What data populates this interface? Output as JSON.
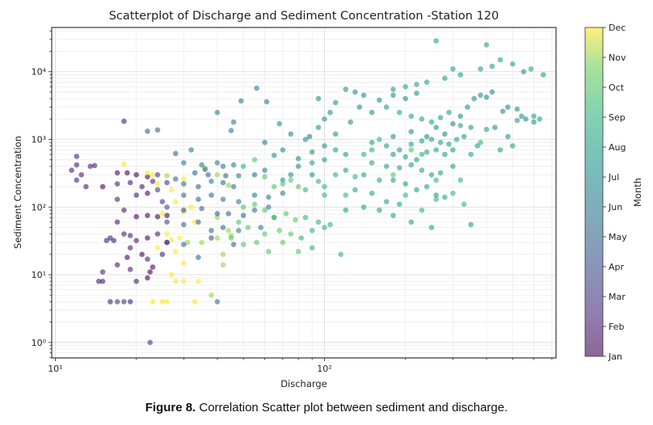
{
  "chart_data": {
    "type": "scatter",
    "title": "Scatterplot of Discharge and Sediment Concentration -Station 120",
    "xlabel": "Discharge",
    "ylabel": "Sediment Concentration",
    "xscale": "log",
    "yscale": "log",
    "xlim": [
      9.7,
      725
    ],
    "ylim": [
      0.59,
      45000
    ],
    "grid": "minor and major, light gray",
    "x_ticks": [
      {
        "value": 10,
        "label": "10¹"
      },
      {
        "value": 100,
        "label": "10²"
      }
    ],
    "y_ticks": [
      {
        "value": 1,
        "label": "10⁰"
      },
      {
        "value": 10,
        "label": "10¹"
      },
      {
        "value": 100,
        "label": "10²"
      },
      {
        "value": 1000,
        "label": "10³"
      },
      {
        "value": 10000,
        "label": "10⁴"
      }
    ],
    "colorbar": {
      "label": "Month",
      "colormap": "viridis",
      "alpha": 0.6,
      "ticks": [
        "Jan",
        "Feb",
        "Mar",
        "Apr",
        "May",
        "Jun",
        "Jul",
        "Aug",
        "Sep",
        "Oct",
        "Nov",
        "Dec"
      ]
    },
    "point_fields": [
      "discharge",
      "sediment_concentration",
      "month"
    ],
    "points": [
      [
        12,
        560,
        2
      ],
      [
        12,
        420,
        2
      ],
      [
        11.5,
        350,
        2
      ],
      [
        12.5,
        300,
        2
      ],
      [
        13.5,
        400,
        2
      ],
      [
        14,
        410,
        2
      ],
      [
        12,
        250,
        2
      ],
      [
        15,
        200,
        1
      ],
      [
        18,
        1850,
        2
      ],
      [
        17,
        320,
        1
      ],
      [
        18.5,
        320,
        1
      ],
      [
        20,
        300,
        1
      ],
      [
        22,
        280,
        1
      ],
      [
        17,
        220,
        2
      ],
      [
        19,
        230,
        2
      ],
      [
        21,
        200,
        2
      ],
      [
        23,
        240,
        2
      ],
      [
        24,
        180,
        3
      ],
      [
        26,
        230,
        3
      ],
      [
        17,
        130,
        2
      ],
      [
        20,
        150,
        2
      ],
      [
        22,
        160,
        1
      ],
      [
        25,
        120,
        3
      ],
      [
        18,
        90,
        2
      ],
      [
        22,
        75,
        1
      ],
      [
        24,
        72,
        1
      ],
      [
        26,
        75,
        1
      ],
      [
        20,
        72,
        1
      ],
      [
        17,
        60,
        2
      ],
      [
        18,
        40,
        2
      ],
      [
        19,
        38,
        2
      ],
      [
        15.5,
        32,
        2
      ],
      [
        16.5,
        32,
        2
      ],
      [
        20,
        32,
        2
      ],
      [
        22,
        35,
        1
      ],
      [
        24,
        40,
        2
      ],
      [
        26,
        30,
        1
      ],
      [
        19,
        25,
        2
      ],
      [
        18.5,
        18,
        1
      ],
      [
        21,
        20,
        1
      ],
      [
        22,
        17,
        2
      ],
      [
        17,
        14,
        2
      ],
      [
        15,
        11,
        2
      ],
      [
        14.5,
        8,
        2
      ],
      [
        15,
        8,
        2
      ],
      [
        20,
        8,
        2
      ],
      [
        22,
        9,
        1
      ],
      [
        22.5,
        11,
        1
      ],
      [
        19,
        12,
        2
      ],
      [
        16,
        4,
        2
      ],
      [
        17,
        4,
        3
      ],
      [
        18,
        4,
        3
      ],
      [
        19,
        4,
        2
      ],
      [
        22.5,
        1,
        3
      ],
      [
        23,
        13,
        1
      ],
      [
        25,
        20,
        2
      ],
      [
        24,
        300,
        3
      ],
      [
        13,
        200,
        2
      ],
      [
        16,
        35,
        2
      ],
      [
        18,
        430,
        12
      ],
      [
        22,
        320,
        12
      ],
      [
        23,
        300,
        12
      ],
      [
        26,
        290,
        11
      ],
      [
        30,
        260,
        12
      ],
      [
        24,
        220,
        12
      ],
      [
        27,
        180,
        12
      ],
      [
        28,
        120,
        12
      ],
      [
        32,
        100,
        12
      ],
      [
        25,
        80,
        12
      ],
      [
        30,
        85,
        12
      ],
      [
        33,
        60,
        12
      ],
      [
        26,
        40,
        12
      ],
      [
        27,
        33,
        12
      ],
      [
        29,
        35,
        12
      ],
      [
        31,
        30,
        11
      ],
      [
        35,
        30,
        11
      ],
      [
        24,
        25,
        12
      ],
      [
        28,
        22,
        12
      ],
      [
        30,
        15,
        12
      ],
      [
        27,
        10,
        12
      ],
      [
        28,
        8,
        12
      ],
      [
        30,
        8,
        12
      ],
      [
        34,
        8,
        12
      ],
      [
        25,
        4,
        12
      ],
      [
        26,
        4,
        12
      ],
      [
        23,
        4,
        12
      ],
      [
        33,
        4,
        12
      ],
      [
        38,
        5,
        11
      ],
      [
        42,
        14,
        11
      ],
      [
        45,
        38,
        11
      ],
      [
        40,
        70,
        11
      ],
      [
        36,
        380,
        11
      ],
      [
        40,
        300,
        11
      ],
      [
        44,
        210,
        11
      ],
      [
        24,
        1380,
        5
      ],
      [
        22,
        1320,
        5
      ],
      [
        28,
        620,
        5
      ],
      [
        32,
        700,
        6
      ],
      [
        40,
        2500,
        6
      ],
      [
        56,
        5700,
        6
      ],
      [
        46,
        1800,
        6
      ],
      [
        61,
        3600,
        6
      ],
      [
        49,
        3700,
        6
      ],
      [
        45,
        1350,
        6
      ],
      [
        30,
        450,
        6
      ],
      [
        35,
        420,
        6
      ],
      [
        36,
        360,
        5
      ],
      [
        40,
        450,
        6
      ],
      [
        42,
        400,
        6
      ],
      [
        46,
        420,
        6
      ],
      [
        33,
        320,
        5
      ],
      [
        37,
        300,
        5
      ],
      [
        43,
        290,
        5
      ],
      [
        48,
        290,
        6
      ],
      [
        55,
        300,
        6
      ],
      [
        60,
        350,
        6
      ],
      [
        28,
        260,
        5
      ],
      [
        30,
        220,
        5
      ],
      [
        34,
        200,
        5
      ],
      [
        38,
        240,
        6
      ],
      [
        42,
        230,
        5
      ],
      [
        46,
        200,
        6
      ],
      [
        30,
        150,
        5
      ],
      [
        34,
        130,
        5
      ],
      [
        38,
        150,
        5
      ],
      [
        42,
        130,
        6
      ],
      [
        48,
        120,
        6
      ],
      [
        55,
        150,
        6
      ],
      [
        62,
        140,
        6
      ],
      [
        70,
        160,
        6
      ],
      [
        26,
        100,
        4
      ],
      [
        30,
        90,
        4
      ],
      [
        35,
        95,
        5
      ],
      [
        40,
        80,
        5
      ],
      [
        44,
        80,
        5
      ],
      [
        50,
        75,
        5
      ],
      [
        55,
        90,
        6
      ],
      [
        62,
        100,
        6
      ],
      [
        26,
        60,
        4
      ],
      [
        30,
        55,
        5
      ],
      [
        34,
        60,
        5
      ],
      [
        38,
        45,
        5
      ],
      [
        42,
        50,
        5
      ],
      [
        48,
        45,
        6
      ],
      [
        26,
        30,
        4
      ],
      [
        30,
        28,
        5
      ],
      [
        38,
        35,
        4
      ],
      [
        46,
        28,
        5
      ],
      [
        34,
        18,
        5
      ],
      [
        40,
        4,
        6
      ],
      [
        58,
        50,
        6
      ],
      [
        65,
        70,
        7
      ],
      [
        70,
        250,
        7
      ],
      [
        75,
        300,
        7
      ],
      [
        80,
        400,
        7
      ],
      [
        90,
        300,
        7
      ],
      [
        65,
        580,
        7
      ],
      [
        70,
        700,
        7
      ],
      [
        80,
        520,
        7
      ],
      [
        90,
        650,
        7
      ],
      [
        100,
        800,
        7
      ],
      [
        75,
        1200,
        7
      ],
      [
        85,
        1000,
        7
      ],
      [
        95,
        1500,
        7
      ],
      [
        100,
        2000,
        7
      ],
      [
        105,
        2500,
        7
      ],
      [
        110,
        3500,
        7
      ],
      [
        95,
        4000,
        7
      ],
      [
        120,
        5500,
        7
      ],
      [
        130,
        5000,
        7
      ],
      [
        140,
        4500,
        7
      ],
      [
        88,
        1100,
        6
      ],
      [
        60,
        900,
        6
      ],
      [
        68,
        1700,
        7
      ],
      [
        110,
        1200,
        7
      ],
      [
        125,
        1800,
        7
      ],
      [
        150,
        2500,
        7
      ],
      [
        135,
        3000,
        7
      ],
      [
        160,
        3800,
        7
      ],
      [
        180,
        4500,
        7
      ],
      [
        200,
        4000,
        7
      ],
      [
        220,
        4800,
        7
      ],
      [
        180,
        1100,
        7
      ],
      [
        210,
        1300,
        7
      ],
      [
        240,
        1100,
        7
      ],
      [
        260,
        1500,
        7
      ],
      [
        280,
        1200,
        7
      ],
      [
        300,
        1700,
        7
      ],
      [
        320,
        2200,
        7
      ],
      [
        340,
        3000,
        7
      ],
      [
        360,
        4000,
        7
      ],
      [
        380,
        4500,
        7
      ],
      [
        400,
        4200,
        7
      ],
      [
        420,
        5000,
        7
      ],
      [
        460,
        2600,
        7
      ],
      [
        480,
        3000,
        7
      ],
      [
        520,
        2800,
        7
      ],
      [
        540,
        2200,
        7
      ],
      [
        560,
        2000,
        7
      ],
      [
        600,
        1800,
        7
      ],
      [
        430,
        1500,
        7
      ],
      [
        480,
        1100,
        7
      ],
      [
        150,
        900,
        8
      ],
      [
        170,
        800,
        8
      ],
      [
        190,
        700,
        8
      ],
      [
        210,
        850,
        8
      ],
      [
        230,
        950,
        8
      ],
      [
        250,
        1000,
        8
      ],
      [
        270,
        900,
        8
      ],
      [
        290,
        850,
        8
      ],
      [
        310,
        1000,
        8
      ],
      [
        330,
        1100,
        8
      ],
      [
        180,
        600,
        8
      ],
      [
        200,
        550,
        8
      ],
      [
        220,
        500,
        8
      ],
      [
        240,
        650,
        8
      ],
      [
        260,
        700,
        8
      ],
      [
        280,
        600,
        8
      ],
      [
        300,
        700,
        8
      ],
      [
        350,
        600,
        8
      ],
      [
        370,
        800,
        8
      ],
      [
        150,
        450,
        8
      ],
      [
        170,
        400,
        8
      ],
      [
        190,
        380,
        8
      ],
      [
        210,
        420,
        8
      ],
      [
        230,
        350,
        8
      ],
      [
        250,
        300,
        8
      ],
      [
        270,
        320,
        8
      ],
      [
        300,
        400,
        8
      ],
      [
        120,
        350,
        8
      ],
      [
        140,
        300,
        8
      ],
      [
        160,
        250,
        8
      ],
      [
        180,
        250,
        8
      ],
      [
        200,
        220,
        8
      ],
      [
        220,
        180,
        8
      ],
      [
        240,
        200,
        8
      ],
      [
        260,
        150,
        8
      ],
      [
        280,
        140,
        8
      ],
      [
        130,
        180,
        8
      ],
      [
        150,
        160,
        8
      ],
      [
        170,
        120,
        8
      ],
      [
        190,
        110,
        8
      ],
      [
        140,
        100,
        8
      ],
      [
        160,
        90,
        8
      ],
      [
        180,
        75,
        8
      ],
      [
        120,
        90,
        8
      ],
      [
        250,
        50,
        8
      ],
      [
        210,
        60,
        8
      ],
      [
        350,
        55,
        8
      ],
      [
        260,
        28500,
        8
      ],
      [
        400,
        25000,
        8
      ],
      [
        585,
        11000,
        8
      ],
      [
        550,
        10000,
        7
      ],
      [
        450,
        15000,
        8
      ],
      [
        500,
        13000,
        8
      ],
      [
        420,
        12000,
        8
      ],
      [
        380,
        11000,
        8
      ],
      [
        300,
        11000,
        8
      ],
      [
        320,
        9000,
        8
      ],
      [
        280,
        8000,
        8
      ],
      [
        240,
        7000,
        8
      ],
      [
        220,
        6500,
        8
      ],
      [
        200,
        6000,
        8
      ],
      [
        180,
        5500,
        8
      ],
      [
        170,
        3000,
        8
      ],
      [
        190,
        2500,
        8
      ],
      [
        210,
        2200,
        8
      ],
      [
        230,
        2000,
        8
      ],
      [
        250,
        1800,
        8
      ],
      [
        270,
        2100,
        8
      ],
      [
        290,
        2500,
        8
      ],
      [
        320,
        1600,
        8
      ],
      [
        350,
        1500,
        8
      ],
      [
        400,
        1400,
        8
      ],
      [
        450,
        700,
        8
      ],
      [
        500,
        800,
        8
      ],
      [
        520,
        1900,
        8
      ],
      [
        600,
        2200,
        8
      ],
      [
        630,
        2000,
        8
      ],
      [
        650,
        9000,
        8
      ],
      [
        380,
        900,
        9
      ],
      [
        320,
        250,
        9
      ],
      [
        300,
        160,
        9
      ],
      [
        260,
        130,
        9
      ],
      [
        230,
        90,
        9
      ],
      [
        120,
        600,
        8
      ],
      [
        110,
        700,
        8
      ],
      [
        100,
        500,
        8
      ],
      [
        90,
        450,
        8
      ],
      [
        50,
        400,
        9
      ],
      [
        55,
        500,
        10
      ],
      [
        60,
        280,
        10
      ],
      [
        65,
        200,
        10
      ],
      [
        70,
        220,
        10
      ],
      [
        75,
        250,
        10
      ],
      [
        80,
        200,
        10
      ],
      [
        85,
        180,
        9
      ],
      [
        95,
        240,
        9
      ],
      [
        100,
        200,
        9
      ],
      [
        110,
        300,
        9
      ],
      [
        120,
        150,
        9
      ],
      [
        50,
        100,
        10
      ],
      [
        55,
        110,
        10
      ],
      [
        60,
        90,
        10
      ],
      [
        65,
        70,
        10
      ],
      [
        72,
        80,
        10
      ],
      [
        78,
        65,
        10
      ],
      [
        85,
        70,
        9
      ],
      [
        95,
        60,
        9
      ],
      [
        105,
        55,
        9
      ],
      [
        48,
        60,
        10
      ],
      [
        52,
        50,
        10
      ],
      [
        60,
        40,
        10
      ],
      [
        68,
        45,
        10
      ],
      [
        75,
        40,
        10
      ],
      [
        82,
        35,
        9
      ],
      [
        90,
        45,
        9
      ],
      [
        100,
        50,
        9
      ],
      [
        45,
        35,
        10
      ],
      [
        50,
        28,
        10
      ],
      [
        56,
        30,
        10
      ],
      [
        62,
        22,
        10
      ],
      [
        70,
        30,
        10
      ],
      [
        80,
        22,
        10
      ],
      [
        90,
        25,
        9
      ],
      [
        115,
        20,
        9
      ],
      [
        100,
        150,
        9
      ],
      [
        130,
        280,
        9
      ],
      [
        140,
        600,
        9
      ],
      [
        150,
        700,
        9
      ],
      [
        160,
        1000,
        9
      ],
      [
        180,
        300,
        10
      ],
      [
        200,
        150,
        9
      ],
      [
        210,
        700,
        10
      ],
      [
        230,
        600,
        9
      ],
      [
        260,
        250,
        9
      ],
      [
        330,
        110,
        9
      ],
      [
        40,
        35,
        11
      ],
      [
        44,
        45,
        11
      ],
      [
        42,
        20,
        11
      ]
    ]
  },
  "caption": {
    "label": "Figure 8.",
    "text": " Correlation Scatter plot between sediment and discharge."
  }
}
